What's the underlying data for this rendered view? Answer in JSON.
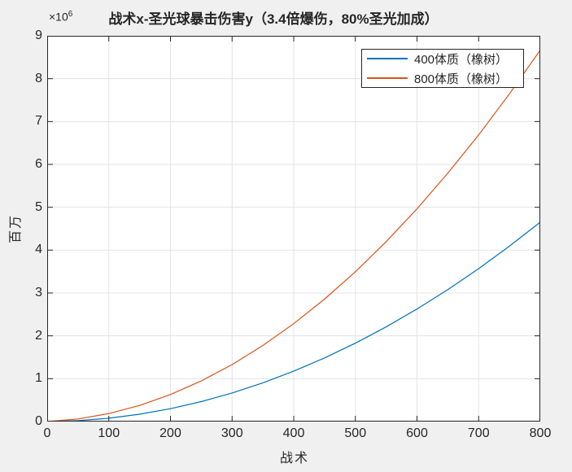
{
  "figure": {
    "background_color": "#f0f0f0",
    "plot_background_color": "#ffffff",
    "axis_color": "#262626",
    "grid_color": "#e3e3e3",
    "y_exponent_base": "×10",
    "y_exponent_power": "6"
  },
  "chart_data": {
    "type": "line",
    "title": "战术x-圣光球暴击伤害y（3.4倍爆伤，80%圣光加成）",
    "xlabel": "战术",
    "ylabel": "百万",
    "xlim": [
      0,
      800
    ],
    "ylim": [
      0,
      9000000
    ],
    "grid": true,
    "legend_position": "top-right",
    "x_ticks": [
      0,
      100,
      200,
      300,
      400,
      500,
      600,
      700,
      800
    ],
    "y_ticks": [
      0,
      1000000,
      2000000,
      3000000,
      4000000,
      5000000,
      6000000,
      7000000,
      8000000,
      9000000
    ],
    "y_tick_labels": [
      "0",
      "1",
      "2",
      "3",
      "4",
      "5",
      "6",
      "7",
      "8",
      "9"
    ],
    "x": [
      0,
      50,
      100,
      150,
      200,
      250,
      300,
      350,
      400,
      450,
      500,
      550,
      600,
      650,
      700,
      750,
      800
    ],
    "series": [
      {
        "name": "400体质（橡树）",
        "color": "#0072BD",
        "values": [
          0,
          21000,
          78000,
          171000,
          300000,
          465000,
          666000,
          903000,
          1175000,
          1484000,
          1829000,
          2209000,
          2626000,
          3078000,
          3567000,
          4091000,
          4652000
        ]
      },
      {
        "name": "800体质（橡树）",
        "color": "#D95319",
        "values": [
          0,
          61000,
          187000,
          376000,
          630000,
          948000,
          1329000,
          1775000,
          2285000,
          2858000,
          3496000,
          4198000,
          4964000,
          5794000,
          6688000,
          7646000,
          8668000
        ]
      }
    ]
  }
}
